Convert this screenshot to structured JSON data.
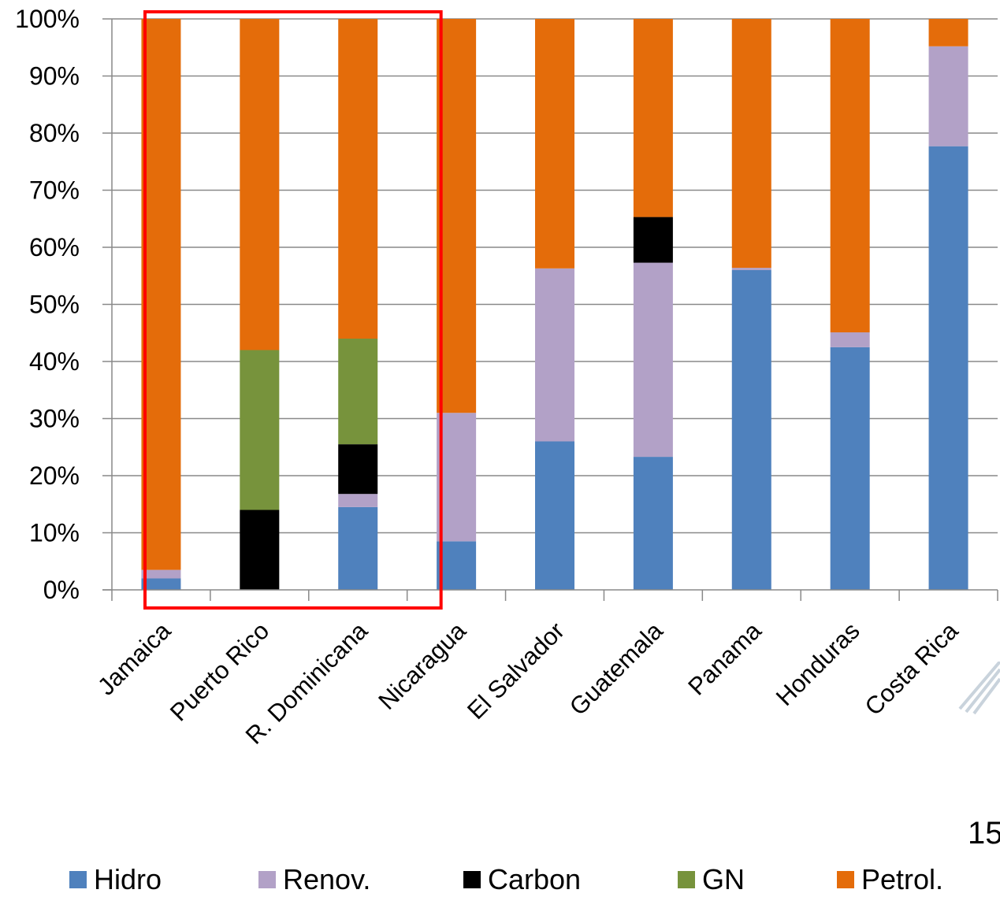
{
  "page_number": "15",
  "chart_data": {
    "type": "bar",
    "stacked": true,
    "percent_stacked": true,
    "categories": [
      "Jamaica",
      "Puerto Rico",
      "R. Dominicana",
      "Nicaragua",
      "El Salvador",
      "Guatemala",
      "Panama",
      "Honduras",
      "Costa Rica"
    ],
    "series": [
      {
        "name": "Hidro",
        "color": "#4F81BD",
        "values": [
          2,
          0,
          14.5,
          8.5,
          26,
          23.3,
          56,
          42.5,
          77.7
        ]
      },
      {
        "name": "Renov.",
        "color": "#B2A1C7",
        "values": [
          1.5,
          0,
          2.3,
          22.5,
          30.3,
          34,
          0.4,
          2.6,
          17.5
        ]
      },
      {
        "name": "Carbon",
        "color": "#000000",
        "values": [
          0,
          14,
          8.7,
          0,
          0,
          8,
          0,
          0,
          0
        ]
      },
      {
        "name": "GN",
        "color": "#77933C",
        "values": [
          0,
          28,
          18.5,
          0,
          0,
          0,
          0,
          0,
          0
        ]
      },
      {
        "name": "Petrol.",
        "color": "#E46C0A",
        "values": [
          96.5,
          58,
          56,
          69,
          43.7,
          34.7,
          43.6,
          54.9,
          4.8
        ]
      }
    ],
    "yticks": [
      "0%",
      "10%",
      "20%",
      "30%",
      "40%",
      "50%",
      "60%",
      "70%",
      "80%",
      "90%",
      "100%"
    ],
    "ylim": [
      0,
      100
    ],
    "grid": true,
    "legend_position": "bottom",
    "highlight": {
      "type": "rectangle",
      "color": "#FF0000",
      "categories": [
        "Jamaica",
        "Puerto Rico",
        "R. Dominicana"
      ]
    }
  }
}
